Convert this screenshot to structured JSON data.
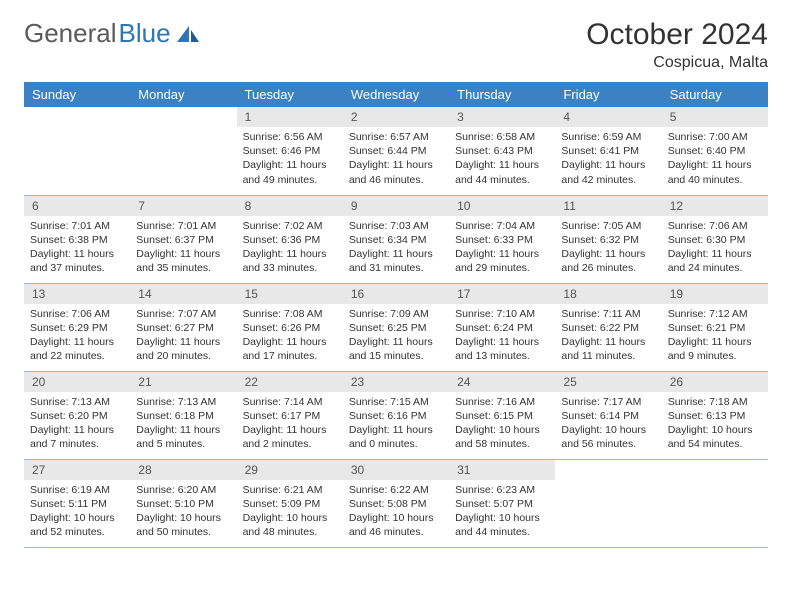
{
  "logo": {
    "part1": "General",
    "part2": "Blue"
  },
  "title": "October 2024",
  "location": "Cospicua, Malta",
  "weekdays": [
    "Sunday",
    "Monday",
    "Tuesday",
    "Wednesday",
    "Thursday",
    "Friday",
    "Saturday"
  ],
  "colors": {
    "header_bg": "#3b82c4",
    "header_text": "#ffffff",
    "daynum_bg": "#e8e8e8",
    "row_divider": "#9bb8d3",
    "logo_gray": "#5a5a5a",
    "logo_blue": "#2e75b6"
  },
  "grid": [
    [
      null,
      null,
      {
        "n": "1",
        "sr": "6:56 AM",
        "ss": "6:46 PM",
        "dl": "11 hours and 49 minutes."
      },
      {
        "n": "2",
        "sr": "6:57 AM",
        "ss": "6:44 PM",
        "dl": "11 hours and 46 minutes."
      },
      {
        "n": "3",
        "sr": "6:58 AM",
        "ss": "6:43 PM",
        "dl": "11 hours and 44 minutes."
      },
      {
        "n": "4",
        "sr": "6:59 AM",
        "ss": "6:41 PM",
        "dl": "11 hours and 42 minutes."
      },
      {
        "n": "5",
        "sr": "7:00 AM",
        "ss": "6:40 PM",
        "dl": "11 hours and 40 minutes."
      }
    ],
    [
      {
        "n": "6",
        "sr": "7:01 AM",
        "ss": "6:38 PM",
        "dl": "11 hours and 37 minutes."
      },
      {
        "n": "7",
        "sr": "7:01 AM",
        "ss": "6:37 PM",
        "dl": "11 hours and 35 minutes."
      },
      {
        "n": "8",
        "sr": "7:02 AM",
        "ss": "6:36 PM",
        "dl": "11 hours and 33 minutes."
      },
      {
        "n": "9",
        "sr": "7:03 AM",
        "ss": "6:34 PM",
        "dl": "11 hours and 31 minutes."
      },
      {
        "n": "10",
        "sr": "7:04 AM",
        "ss": "6:33 PM",
        "dl": "11 hours and 29 minutes."
      },
      {
        "n": "11",
        "sr": "7:05 AM",
        "ss": "6:32 PM",
        "dl": "11 hours and 26 minutes."
      },
      {
        "n": "12",
        "sr": "7:06 AM",
        "ss": "6:30 PM",
        "dl": "11 hours and 24 minutes."
      }
    ],
    [
      {
        "n": "13",
        "sr": "7:06 AM",
        "ss": "6:29 PM",
        "dl": "11 hours and 22 minutes."
      },
      {
        "n": "14",
        "sr": "7:07 AM",
        "ss": "6:27 PM",
        "dl": "11 hours and 20 minutes."
      },
      {
        "n": "15",
        "sr": "7:08 AM",
        "ss": "6:26 PM",
        "dl": "11 hours and 17 minutes."
      },
      {
        "n": "16",
        "sr": "7:09 AM",
        "ss": "6:25 PM",
        "dl": "11 hours and 15 minutes."
      },
      {
        "n": "17",
        "sr": "7:10 AM",
        "ss": "6:24 PM",
        "dl": "11 hours and 13 minutes."
      },
      {
        "n": "18",
        "sr": "7:11 AM",
        "ss": "6:22 PM",
        "dl": "11 hours and 11 minutes."
      },
      {
        "n": "19",
        "sr": "7:12 AM",
        "ss": "6:21 PM",
        "dl": "11 hours and 9 minutes."
      }
    ],
    [
      {
        "n": "20",
        "sr": "7:13 AM",
        "ss": "6:20 PM",
        "dl": "11 hours and 7 minutes."
      },
      {
        "n": "21",
        "sr": "7:13 AM",
        "ss": "6:18 PM",
        "dl": "11 hours and 5 minutes."
      },
      {
        "n": "22",
        "sr": "7:14 AM",
        "ss": "6:17 PM",
        "dl": "11 hours and 2 minutes."
      },
      {
        "n": "23",
        "sr": "7:15 AM",
        "ss": "6:16 PM",
        "dl": "11 hours and 0 minutes."
      },
      {
        "n": "24",
        "sr": "7:16 AM",
        "ss": "6:15 PM",
        "dl": "10 hours and 58 minutes."
      },
      {
        "n": "25",
        "sr": "7:17 AM",
        "ss": "6:14 PM",
        "dl": "10 hours and 56 minutes."
      },
      {
        "n": "26",
        "sr": "7:18 AM",
        "ss": "6:13 PM",
        "dl": "10 hours and 54 minutes."
      }
    ],
    [
      {
        "n": "27",
        "sr": "6:19 AM",
        "ss": "5:11 PM",
        "dl": "10 hours and 52 minutes."
      },
      {
        "n": "28",
        "sr": "6:20 AM",
        "ss": "5:10 PM",
        "dl": "10 hours and 50 minutes."
      },
      {
        "n": "29",
        "sr": "6:21 AM",
        "ss": "5:09 PM",
        "dl": "10 hours and 48 minutes."
      },
      {
        "n": "30",
        "sr": "6:22 AM",
        "ss": "5:08 PM",
        "dl": "10 hours and 46 minutes."
      },
      {
        "n": "31",
        "sr": "6:23 AM",
        "ss": "5:07 PM",
        "dl": "10 hours and 44 minutes."
      },
      null,
      null
    ]
  ],
  "labels": {
    "sunrise": "Sunrise:",
    "sunset": "Sunset:",
    "daylight": "Daylight:"
  }
}
